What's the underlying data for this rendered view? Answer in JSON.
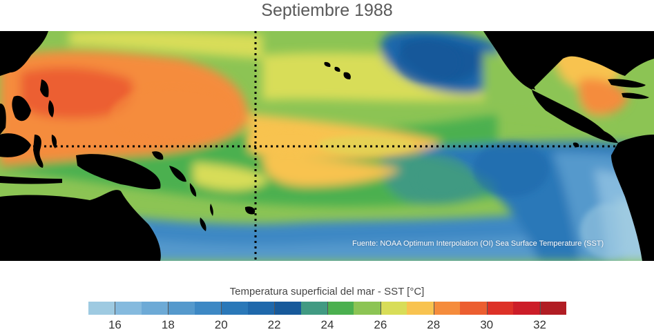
{
  "title": "Septiembre 1988",
  "source_note": "Fuente: NOAA Optimum Interpolation (OI) Sea Surface Temperature (SST)",
  "legend": {
    "title": "Temperatura superficial del mar - SST  [°C]",
    "min": 15,
    "max": 33,
    "step": 1,
    "tick_labels": [
      "16",
      "18",
      "20",
      "22",
      "24",
      "26",
      "28",
      "30",
      "32"
    ],
    "tick_values": [
      16,
      18,
      20,
      22,
      24,
      26,
      28,
      30,
      32
    ],
    "colors": [
      "#9ecae1",
      "#85bade",
      "#6daad6",
      "#5599cc",
      "#3d88c4",
      "#2a78b8",
      "#1f68ab",
      "#17599a",
      "#419a82",
      "#4bb04f",
      "#8cc454",
      "#d8dd58",
      "#f8c350",
      "#f58c3c",
      "#ec5e30",
      "#dd3127",
      "#cc1d28",
      "#b11d24"
    ]
  },
  "map": {
    "land_color": "#000000",
    "graticule": {
      "equator_label": "",
      "meridian_label": ""
    }
  }
}
